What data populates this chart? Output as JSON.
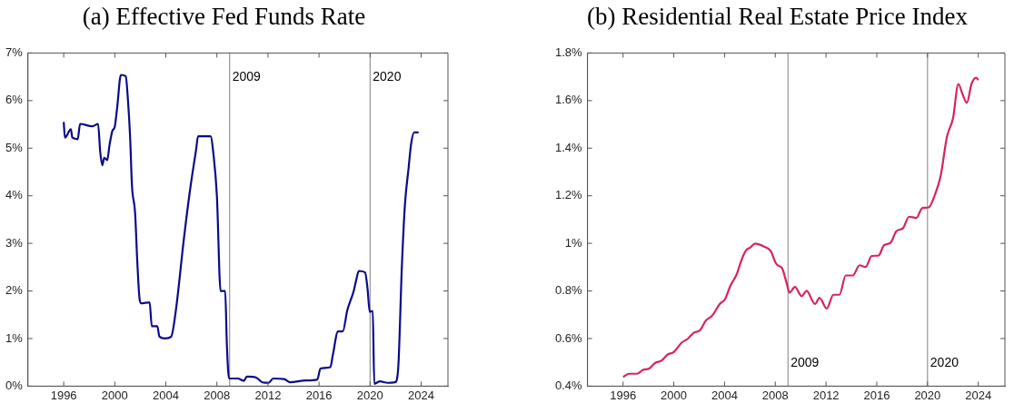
{
  "chart_data": [
    {
      "type": "line",
      "title": "(a) Effective Fed Funds Rate",
      "x": [
        1996.0,
        1996.1,
        1996.56,
        1996.68,
        1997.1,
        1997.28,
        1998.25,
        1998.69,
        1998.86,
        1999.03,
        1999.17,
        1999.41,
        1999.58,
        1999.82,
        1999.99,
        2000.19,
        2000.48,
        2000.86,
        2001.03,
        2001.2,
        2001.35,
        2001.59,
        2001.76,
        2001.93,
        2002.05,
        2002.73,
        2002.9,
        2003.33,
        2003.5,
        2003.94,
        2004.42,
        2004.79,
        2005.39,
        2005.87,
        2006.36,
        2006.53,
        2007.5,
        2007.74,
        2008.0,
        2008.29,
        2008.65,
        2008.78,
        2008.95,
        2009.63,
        2010.11,
        2010.35,
        2011.08,
        2011.56,
        2012.05,
        2012.41,
        2013.26,
        2013.74,
        2014.95,
        2015.87,
        2016.11,
        2016.89,
        2017.08,
        2017.49,
        2017.86,
        2018.22,
        2018.71,
        2018.88,
        2019.12,
        2019.61,
        2019.8,
        2019.97,
        2020.21,
        2020.33,
        2020.77,
        2021.37,
        2021.96,
        2022.2,
        2022.49,
        2022.73,
        2023.02,
        2023.21,
        2023.46,
        2023.8
      ],
      "series": [
        {
          "color": "#0a0a8c",
          "values": [
            5.55,
            5.22,
            5.4,
            5.22,
            5.19,
            5.51,
            5.46,
            5.51,
            4.92,
            4.64,
            4.8,
            4.75,
            5.05,
            5.37,
            5.44,
            5.86,
            6.54,
            6.51,
            6.02,
            5.24,
            4.2,
            3.65,
            2.64,
            1.86,
            1.74,
            1.76,
            1.26,
            1.26,
            1.04,
            1.0,
            1.04,
            1.6,
            3.04,
            4.07,
            4.95,
            5.25,
            5.25,
            4.85,
            4.0,
            2.0,
            2.0,
            0.88,
            0.16,
            0.16,
            0.11,
            0.2,
            0.18,
            0.08,
            0.07,
            0.16,
            0.15,
            0.08,
            0.12,
            0.14,
            0.37,
            0.4,
            0.65,
            1.15,
            1.15,
            1.6,
            1.99,
            2.19,
            2.42,
            2.39,
            2.05,
            1.56,
            1.58,
            0.05,
            0.1,
            0.07,
            0.08,
            0.36,
            2.51,
            3.81,
            4.59,
            5.08,
            5.33,
            5.33
          ]
        }
      ],
      "xlim": [
        1993.2,
        2026.1
      ],
      "xticks": [
        1996,
        2000,
        2004,
        2008,
        2012,
        2016,
        2020,
        2024
      ],
      "ylim": [
        0,
        7
      ],
      "yticks": [
        {
          "value": 0,
          "label": "0%"
        },
        {
          "value": 1,
          "label": "1%"
        },
        {
          "value": 2,
          "label": "2%"
        },
        {
          "value": 3,
          "label": "3%"
        },
        {
          "value": 4,
          "label": "4%"
        },
        {
          "value": 5,
          "label": "5%"
        },
        {
          "value": 6,
          "label": "6%"
        },
        {
          "value": 7,
          "label": "7%"
        }
      ],
      "ref_lines": [
        {
          "axis": "x",
          "value": 2009,
          "label": "2009",
          "color": "#808080"
        },
        {
          "axis": "x",
          "value": 2020,
          "label": "2020",
          "color": "#808080"
        }
      ],
      "grid": false,
      "legend": false
    },
    {
      "type": "line",
      "title": "(b) Residential Real Estate Price Index",
      "x": [
        1996.0,
        1996.48,
        1997.09,
        1997.57,
        1998.06,
        1998.54,
        1999.03,
        1999.51,
        2000.0,
        2000.6,
        2001.08,
        2001.57,
        2002.05,
        2002.54,
        2003.02,
        2003.62,
        2004.03,
        2004.47,
        2004.95,
        2005.32,
        2005.68,
        2006.04,
        2006.41,
        2007.13,
        2007.62,
        2008.1,
        2008.54,
        2008.88,
        2009.12,
        2009.55,
        2010.08,
        2010.47,
        2011.13,
        2011.49,
        2012.05,
        2012.58,
        2013.06,
        2013.55,
        2014.11,
        2014.64,
        2015.12,
        2015.6,
        2016.14,
        2016.57,
        2017.1,
        2017.54,
        2018.07,
        2018.55,
        2019.11,
        2019.6,
        2020.08,
        2020.56,
        2021.04,
        2021.53,
        2022.01,
        2022.43,
        2022.74,
        2023.1,
        2023.47,
        2023.83,
        2024.0
      ],
      "series": [
        {
          "color": "#d6245c",
          "values": [
            0.439,
            0.452,
            0.452,
            0.468,
            0.474,
            0.498,
            0.507,
            0.533,
            0.543,
            0.582,
            0.598,
            0.624,
            0.634,
            0.676,
            0.696,
            0.745,
            0.765,
            0.823,
            0.869,
            0.927,
            0.969,
            0.983,
            0.999,
            0.986,
            0.969,
            0.912,
            0.895,
            0.836,
            0.793,
            0.817,
            0.778,
            0.801,
            0.745,
            0.771,
            0.726,
            0.784,
            0.784,
            0.865,
            0.865,
            0.908,
            0.901,
            0.947,
            0.949,
            0.992,
            1.003,
            1.051,
            1.064,
            1.112,
            1.107,
            1.149,
            1.151,
            1.201,
            1.285,
            1.448,
            1.526,
            1.67,
            1.63,
            1.591,
            1.67,
            1.696,
            1.686
          ]
        }
      ],
      "xlim": [
        1993.2,
        2026.1
      ],
      "xticks": [
        1996,
        2000,
        2004,
        2008,
        2012,
        2016,
        2020,
        2024
      ],
      "ylim": [
        0.4,
        1.8
      ],
      "yticks": [
        {
          "value": 0.4,
          "label": "0.4%"
        },
        {
          "value": 0.6,
          "label": "0.6%"
        },
        {
          "value": 0.8,
          "label": "0.8%"
        },
        {
          "value": 1,
          "label": "1%"
        },
        {
          "value": 1.2,
          "label": "1.2%"
        },
        {
          "value": 1.4,
          "label": "1.4%"
        },
        {
          "value": 1.6,
          "label": "1.6%"
        },
        {
          "value": 1.8,
          "label": "1.8%"
        }
      ],
      "ref_lines": [
        {
          "axis": "x",
          "value": 2009,
          "label": "2009",
          "color": "#808080"
        },
        {
          "axis": "x",
          "value": 2020,
          "label": "2020",
          "color": "#808080"
        }
      ],
      "grid": false,
      "legend": false
    }
  ]
}
